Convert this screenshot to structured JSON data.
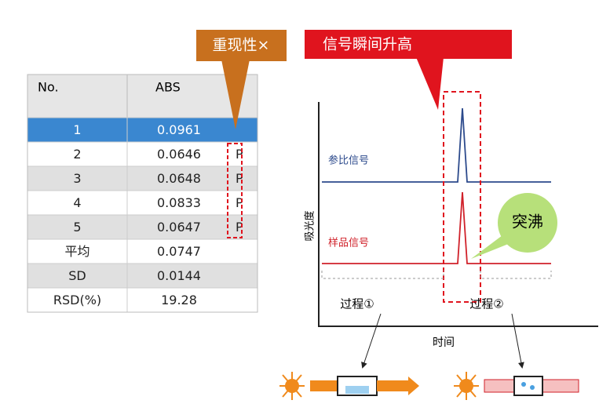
{
  "table": {
    "header": [
      "No.",
      "ABS"
    ],
    "rows": [
      {
        "no": "1",
        "abs": "0.0961"
      },
      {
        "no": "2",
        "abs": "0.0646",
        "flag": "P"
      },
      {
        "no": "3",
        "abs": "0.0648",
        "flag": "P"
      },
      {
        "no": "4",
        "abs": "0.0833",
        "flag": "P"
      },
      {
        "no": "5",
        "abs": "0.0647",
        "flag": "P"
      },
      {
        "no": "平均",
        "abs": "0.0747"
      },
      {
        "no": "SD",
        "abs": "0.0144"
      },
      {
        "no": "RSD(%)",
        "abs": "19.28"
      }
    ]
  },
  "callouts": {
    "reproducibility": "重现性×",
    "signal": "信号瞬间升高",
    "bumping": "突沸"
  },
  "chart": {
    "reference_label": "参比信号",
    "sample_label": "样品信号",
    "y_label": "吸光度",
    "x_label": "时间",
    "process_1": "过程①",
    "process_2": "过程②"
  }
}
